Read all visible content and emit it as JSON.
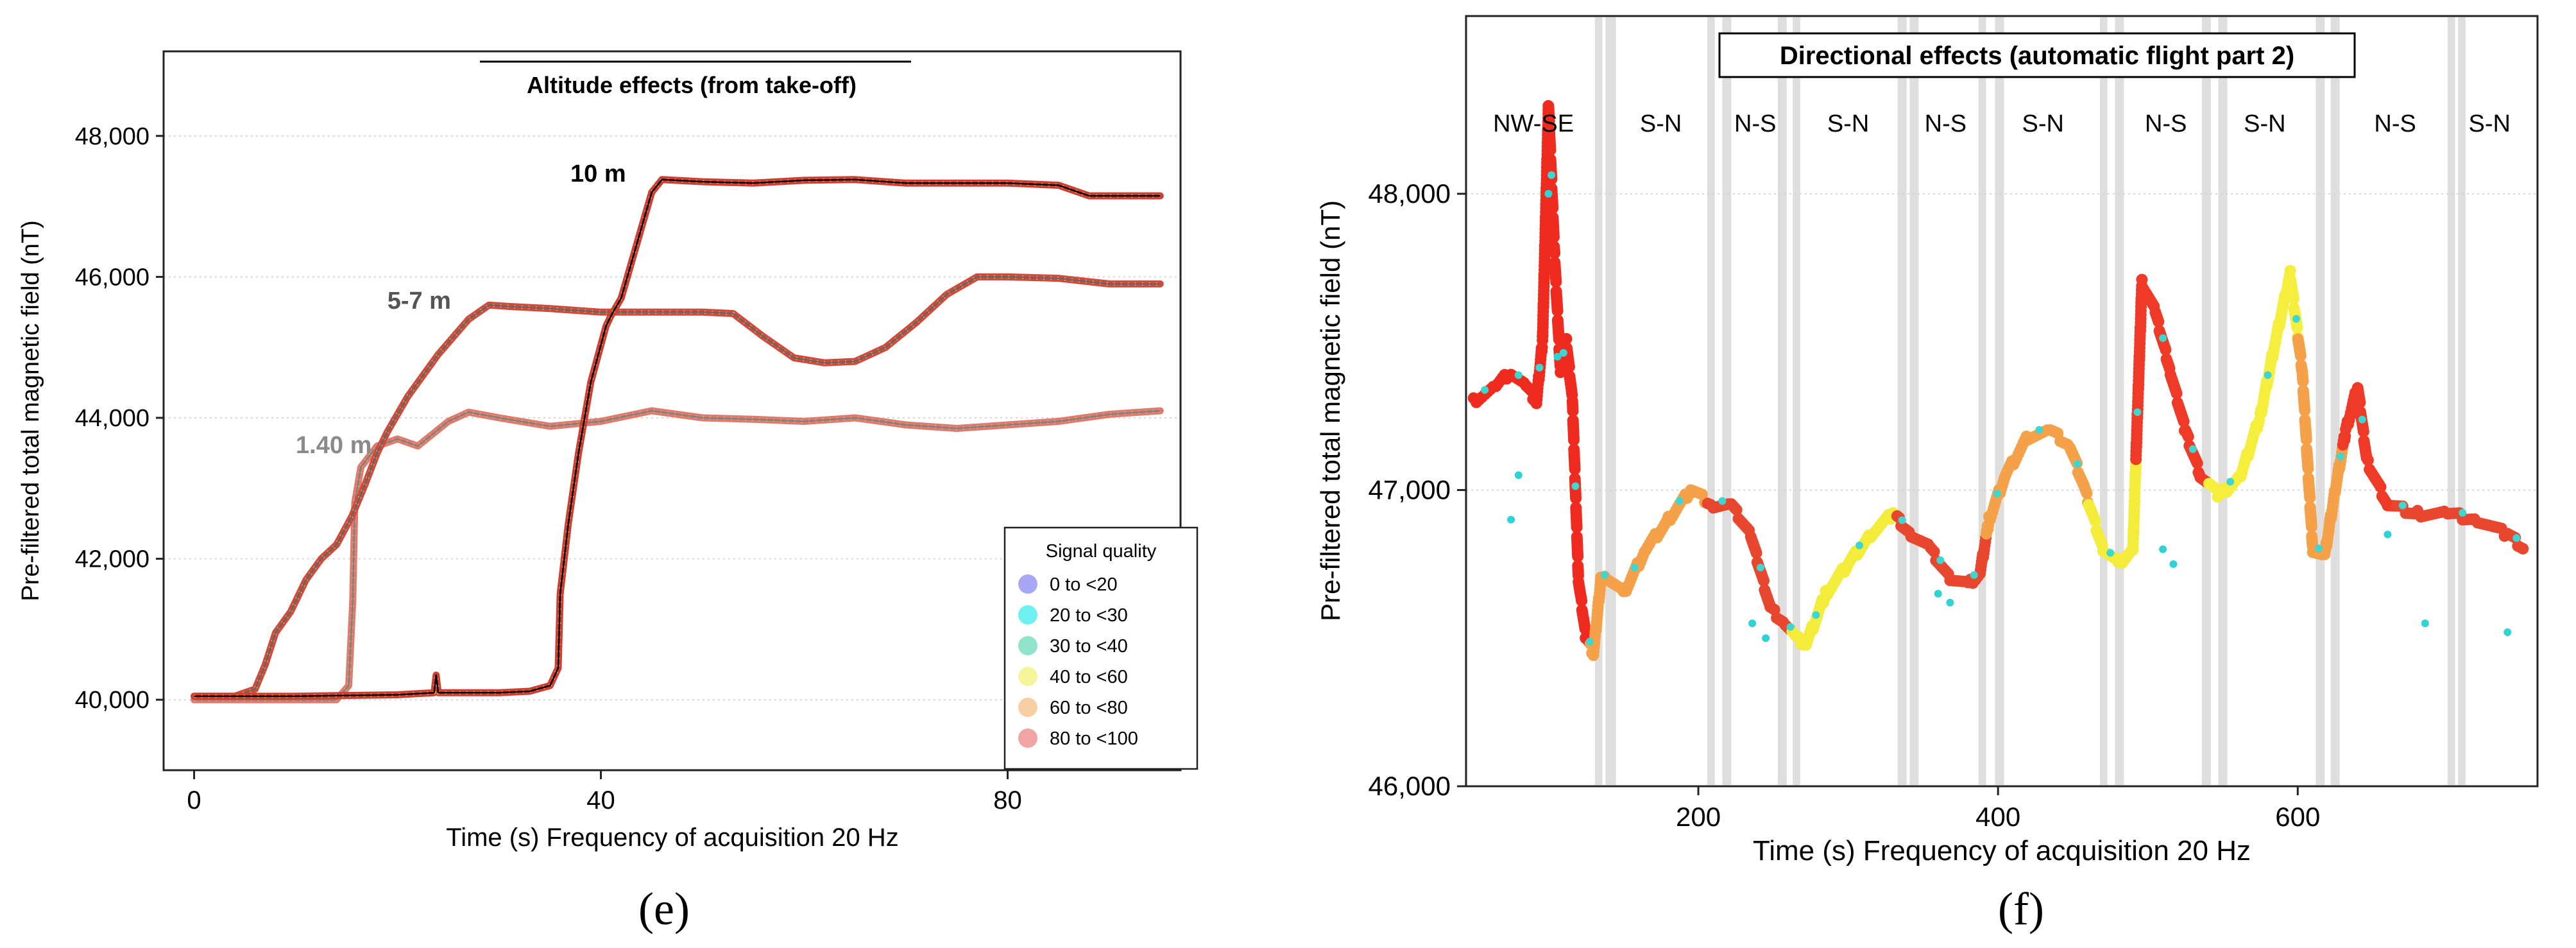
{
  "chart_data": [
    {
      "type": "line",
      "panel_label": "(e)",
      "title": "Altitude effects (from take-off)",
      "xlabel": "Time (s) Frequency of acquisition 20 Hz",
      "ylabel": "Pre-filtered total magnetic field (nT)",
      "xlim": [
        -3,
        97
      ],
      "ylim": [
        39000,
        49200
      ],
      "xticks": [
        0,
        40,
        80
      ],
      "xtick_labels": [
        "0",
        "40",
        "80"
      ],
      "yticks": [
        40000,
        42000,
        44000,
        46000,
        48000
      ],
      "ytick_labels": [
        "40,000",
        "42,000",
        "44,000",
        "46,000",
        "48,000"
      ],
      "legend": {
        "title": "Signal quality",
        "position": "bottom-right",
        "entries": [
          {
            "label": "0 to <20",
            "color": "#a9a6f5"
          },
          {
            "label": "20 to <30",
            "color": "#6ff0f0"
          },
          {
            "label": "30 to <40",
            "color": "#8fe3c8"
          },
          {
            "label": "40 to <60",
            "color": "#f6f59a"
          },
          {
            "label": "60 to <80",
            "color": "#f7cfa3"
          },
          {
            "label": "80 to <100",
            "color": "#f2a3a3"
          }
        ]
      },
      "series": [
        {
          "name": "1.40 m",
          "color": "#808080",
          "label_position": [
            10,
            43500
          ],
          "points": [
            [
              0,
              40000
            ],
            [
              4,
              40000
            ],
            [
              14,
              40000
            ],
            [
              15.2,
              40200
            ],
            [
              15.6,
              41400
            ],
            [
              15.8,
              42800
            ],
            [
              16.4,
              43300
            ],
            [
              18,
              43600
            ],
            [
              20,
              43700
            ],
            [
              22,
              43600
            ],
            [
              25,
              43950
            ],
            [
              27,
              44080
            ],
            [
              30,
              44000
            ],
            [
              35,
              43880
            ],
            [
              40,
              43950
            ],
            [
              45,
              44100
            ],
            [
              50,
              44000
            ],
            [
              55,
              43980
            ],
            [
              60,
              43950
            ],
            [
              65,
              44000
            ],
            [
              70,
              43900
            ],
            [
              75,
              43850
            ],
            [
              80,
              43900
            ],
            [
              85,
              43950
            ],
            [
              90,
              44050
            ],
            [
              95,
              44100
            ]
          ]
        },
        {
          "name": "5-7 m",
          "color": "#666666",
          "label_position": [
            19,
            45550
          ],
          "points": [
            [
              0,
              40050
            ],
            [
              4,
              40050
            ],
            [
              6,
              40150
            ],
            [
              7,
              40500
            ],
            [
              8,
              40950
            ],
            [
              9.5,
              41250
            ],
            [
              11,
              41700
            ],
            [
              12.5,
              42000
            ],
            [
              14,
              42200
            ],
            [
              15.5,
              42600
            ],
            [
              16.8,
              43050
            ],
            [
              18,
              43500
            ],
            [
              19,
              43800
            ],
            [
              21,
              44300
            ],
            [
              24,
              44900
            ],
            [
              27,
              45400
            ],
            [
              29,
              45600
            ],
            [
              31,
              45580
            ],
            [
              35,
              45550
            ],
            [
              40,
              45500
            ],
            [
              45,
              45500
            ],
            [
              50,
              45500
            ],
            [
              53,
              45480
            ],
            [
              56,
              45150
            ],
            [
              59,
              44850
            ],
            [
              62,
              44780
            ],
            [
              65,
              44800
            ],
            [
              68,
              45000
            ],
            [
              71,
              45350
            ],
            [
              74,
              45750
            ],
            [
              77,
              46000
            ],
            [
              80,
              46000
            ],
            [
              85,
              45980
            ],
            [
              90,
              45900
            ],
            [
              95,
              45900
            ]
          ]
        },
        {
          "name": "10 m",
          "color": "#000000",
          "label_position": [
            37,
            47350
          ],
          "points": [
            [
              0,
              40050
            ],
            [
              10,
              40050
            ],
            [
              20,
              40070
            ],
            [
              23.6,
              40100
            ],
            [
              23.8,
              40350
            ],
            [
              24,
              40100
            ],
            [
              30,
              40100
            ],
            [
              33,
              40120
            ],
            [
              35,
              40200
            ],
            [
              35.8,
              40450
            ],
            [
              36,
              41500
            ],
            [
              36.8,
              42500
            ],
            [
              37.8,
              43500
            ],
            [
              39,
              44500
            ],
            [
              40.5,
              45300
            ],
            [
              41,
              45450
            ],
            [
              42,
              45700
            ],
            [
              43,
              46200
            ],
            [
              44,
              46700
            ],
            [
              45,
              47200
            ],
            [
              46,
              47380
            ],
            [
              50,
              47350
            ],
            [
              55,
              47330
            ],
            [
              60,
              47370
            ],
            [
              65,
              47380
            ],
            [
              70,
              47330
            ],
            [
              75,
              47330
            ],
            [
              80,
              47330
            ],
            [
              85,
              47300
            ],
            [
              88,
              47150
            ],
            [
              95,
              47150
            ]
          ]
        }
      ],
      "series_labels": [
        "1.40 m",
        "5-7 m",
        "10 m"
      ]
    },
    {
      "type": "scatter",
      "panel_label": "(f)",
      "title": "Directional effects (automatic flight part 2)",
      "xlabel": "Time (s) Frequency of acquisition 20 Hz",
      "ylabel": "Pre-filtered total magnetic field (nT)",
      "xlim": [
        45,
        760
      ],
      "ylim": [
        46000,
        48600
      ],
      "xticks": [
        200,
        400,
        600
      ],
      "xtick_labels": [
        "200",
        "400",
        "600"
      ],
      "yticks": [
        46000,
        47000,
        48000
      ],
      "ytick_labels": [
        "46,000",
        "47,000",
        "48,000"
      ],
      "direction_labels": [
        {
          "label": "NW-SE",
          "x": 90
        },
        {
          "label": "S-N",
          "x": 175
        },
        {
          "label": "N-S",
          "x": 238
        },
        {
          "label": "S-N",
          "x": 300
        },
        {
          "label": "N-S",
          "x": 365
        },
        {
          "label": "S-N",
          "x": 430
        },
        {
          "label": "N-S",
          "x": 512
        },
        {
          "label": "S-N",
          "x": 578
        },
        {
          "label": "N-S",
          "x": 665
        },
        {
          "label": "S-N",
          "x": 728
        }
      ],
      "shaded_bands": [
        [
          131,
          136
        ],
        [
          138,
          145
        ],
        [
          206,
          211
        ],
        [
          216,
          222
        ],
        [
          253,
          259
        ],
        [
          263,
          268
        ],
        [
          333,
          339
        ],
        [
          341,
          347
        ],
        [
          387,
          392
        ],
        [
          398,
          404
        ],
        [
          468,
          473
        ],
        [
          478,
          484
        ],
        [
          536,
          542
        ],
        [
          547,
          553
        ],
        [
          612,
          618
        ],
        [
          622,
          628
        ],
        [
          700,
          705
        ],
        [
          707,
          712
        ]
      ],
      "trace": [
        [
          50,
          47300
        ],
        [
          65,
          47350
        ],
        [
          75,
          47400
        ],
        [
          85,
          47350
        ],
        [
          92,
          47300
        ],
        [
          96,
          47500
        ],
        [
          100,
          48300
        ],
        [
          104,
          47800
        ],
        [
          108,
          47400
        ],
        [
          112,
          47500
        ],
        [
          116,
          47300
        ],
        [
          120,
          46700
        ],
        [
          125,
          46500
        ],
        [
          130,
          46450
        ],
        [
          135,
          46700
        ],
        [
          140,
          46700
        ],
        [
          150,
          46650
        ],
        [
          165,
          46800
        ],
        [
          180,
          46900
        ],
        [
          195,
          47000
        ],
        [
          210,
          46950
        ],
        [
          222,
          46950
        ],
        [
          235,
          46850
        ],
        [
          248,
          46600
        ],
        [
          258,
          46550
        ],
        [
          265,
          46500
        ],
        [
          272,
          46480
        ],
        [
          285,
          46650
        ],
        [
          300,
          46750
        ],
        [
          315,
          46850
        ],
        [
          330,
          46920
        ],
        [
          342,
          46850
        ],
        [
          355,
          46800
        ],
        [
          368,
          46700
        ],
        [
          380,
          46680
        ],
        [
          388,
          46720
        ],
        [
          394,
          46900
        ],
        [
          405,
          47050
        ],
        [
          420,
          47180
        ],
        [
          435,
          47200
        ],
        [
          448,
          47150
        ],
        [
          458,
          47000
        ],
        [
          470,
          46800
        ],
        [
          480,
          46750
        ],
        [
          490,
          46800
        ],
        [
          496,
          47700
        ],
        [
          505,
          47600
        ],
        [
          515,
          47400
        ],
        [
          525,
          47200
        ],
        [
          535,
          47050
        ],
        [
          548,
          46980
        ],
        [
          562,
          47050
        ],
        [
          575,
          47250
        ],
        [
          585,
          47500
        ],
        [
          595,
          47730
        ],
        [
          603,
          47400
        ],
        [
          610,
          46800
        ],
        [
          618,
          46780
        ],
        [
          625,
          47000
        ],
        [
          632,
          47200
        ],
        [
          640,
          47350
        ],
        [
          646,
          47100
        ],
        [
          660,
          46950
        ],
        [
          680,
          46920
        ],
        [
          700,
          46920
        ],
        [
          720,
          46900
        ],
        [
          740,
          46850
        ],
        [
          752,
          46800
        ]
      ],
      "outliers": [
        [
          75,
          46900
        ],
        [
          80,
          47050
        ],
        [
          100,
          48000
        ],
        [
          106,
          47450
        ],
        [
          236,
          46550
        ],
        [
          245,
          46500
        ],
        [
          360,
          46650
        ],
        [
          368,
          46620
        ],
        [
          510,
          46800
        ],
        [
          517,
          46750
        ],
        [
          660,
          46850
        ],
        [
          685,
          46550
        ],
        [
          740,
          46520
        ]
      ]
    }
  ]
}
